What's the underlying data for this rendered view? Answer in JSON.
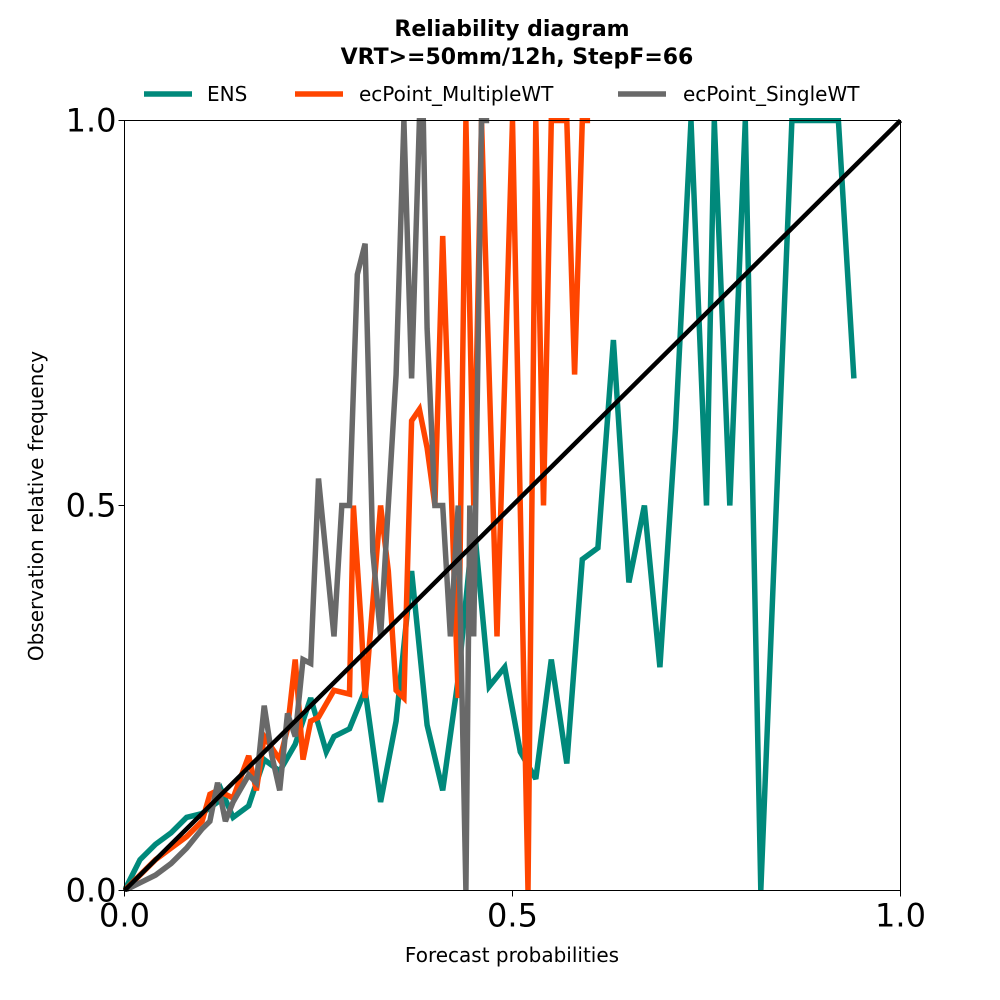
{
  "chart_data": {
    "type": "line",
    "title": "Reliability diagram",
    "subtitle": "VRT>=50mm/12h, StepF=66",
    "xlabel": "Forecast probabilities",
    "ylabel": "Observation relative frequency",
    "xlim": [
      0.0,
      1.0
    ],
    "ylim": [
      0.0,
      1.0
    ],
    "x_ticks": [
      "0.0",
      "0.5",
      "1.0"
    ],
    "y_ticks": [
      "0.0",
      "0.5",
      "1.0"
    ],
    "grid": false,
    "legend_position": "top, above plot",
    "diagonal": {
      "x": [
        0,
        1
      ],
      "y": [
        0,
        1
      ],
      "color": "#000000"
    },
    "series": [
      {
        "name": "ENS",
        "color": "#00897b",
        "x": [
          0.0,
          0.02,
          0.04,
          0.06,
          0.08,
          0.1,
          0.12,
          0.125,
          0.14,
          0.16,
          0.18,
          0.2,
          0.22,
          0.24,
          0.26,
          0.27,
          0.29,
          0.31,
          0.33,
          0.35,
          0.37,
          0.39,
          0.41,
          0.43,
          0.45,
          0.47,
          0.49,
          0.51,
          0.53,
          0.55,
          0.57,
          0.59,
          0.61,
          0.63,
          0.65,
          0.67,
          0.69,
          0.71,
          0.73,
          0.75,
          0.76,
          0.78,
          0.8,
          0.82,
          0.84,
          0.86,
          0.88,
          0.9,
          0.92,
          0.94
        ],
        "y": [
          0.0,
          0.04,
          0.06,
          0.075,
          0.095,
          0.1,
          0.115,
          0.13,
          0.095,
          0.11,
          0.17,
          0.155,
          0.19,
          0.25,
          0.18,
          0.2,
          0.21,
          0.26,
          0.115,
          0.22,
          0.415,
          0.215,
          0.13,
          0.275,
          0.48,
          0.265,
          0.29,
          0.18,
          0.145,
          0.3,
          0.165,
          0.43,
          0.445,
          0.715,
          0.4,
          0.5,
          0.29,
          0.6,
          1.0,
          0.5,
          1.0,
          0.5,
          1.0,
          0.0,
          0.5,
          1.0,
          1.0,
          1.0,
          1.0,
          0.665
        ]
      },
      {
        "name": "ecPoint_MultipleWT",
        "color": "#ff4500",
        "x": [
          0.0,
          0.02,
          0.04,
          0.06,
          0.08,
          0.1,
          0.11,
          0.12,
          0.14,
          0.16,
          0.17,
          0.18,
          0.2,
          0.21,
          0.22,
          0.23,
          0.24,
          0.25,
          0.27,
          0.29,
          0.295,
          0.305,
          0.31,
          0.33,
          0.34,
          0.35,
          0.36,
          0.37,
          0.38,
          0.39,
          0.4,
          0.41,
          0.43,
          0.44,
          0.45,
          0.46,
          0.48,
          0.5,
          0.52,
          0.53,
          0.54,
          0.55,
          0.56,
          0.57,
          0.58,
          0.59,
          0.6
        ],
        "y": [
          0.0,
          0.02,
          0.04,
          0.055,
          0.07,
          0.09,
          0.125,
          0.13,
          0.12,
          0.175,
          0.13,
          0.2,
          0.17,
          0.21,
          0.3,
          0.17,
          0.22,
          0.225,
          0.26,
          0.255,
          0.5,
          0.345,
          0.25,
          0.5,
          0.415,
          0.26,
          0.25,
          0.61,
          0.625,
          0.575,
          0.5,
          0.85,
          0.25,
          1.0,
          0.5,
          1.0,
          0.33,
          1.0,
          0.0,
          1.0,
          0.5,
          1.0,
          1.0,
          1.0,
          0.67,
          1.0,
          1.0
        ]
      },
      {
        "name": "ecPoint_SingleWT",
        "color": "#696969",
        "x": [
          0.0,
          0.02,
          0.04,
          0.06,
          0.08,
          0.1,
          0.11,
          0.12,
          0.13,
          0.14,
          0.16,
          0.17,
          0.18,
          0.19,
          0.2,
          0.21,
          0.22,
          0.23,
          0.24,
          0.25,
          0.27,
          0.28,
          0.29,
          0.3,
          0.31,
          0.32,
          0.33,
          0.34,
          0.35,
          0.36,
          0.37,
          0.38,
          0.385,
          0.39,
          0.4,
          0.41,
          0.42,
          0.43,
          0.44,
          0.445,
          0.45,
          0.46,
          0.47
        ],
        "y": [
          0.0,
          0.01,
          0.02,
          0.035,
          0.055,
          0.08,
          0.09,
          0.14,
          0.09,
          0.115,
          0.15,
          0.14,
          0.24,
          0.175,
          0.13,
          0.23,
          0.2,
          0.3,
          0.295,
          0.535,
          0.33,
          0.5,
          0.5,
          0.8,
          0.84,
          0.44,
          0.33,
          0.5,
          0.67,
          1.0,
          0.665,
          1.0,
          1.0,
          0.73,
          0.5,
          0.5,
          0.33,
          0.5,
          0.0,
          0.5,
          0.33,
          1.0,
          1.0
        ]
      }
    ]
  }
}
